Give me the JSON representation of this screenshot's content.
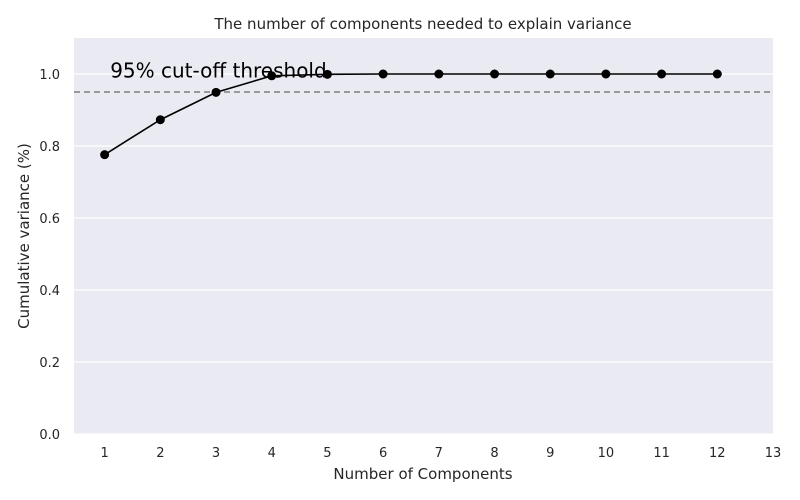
{
  "chart_data": {
    "type": "line",
    "title": "The number of components needed to explain variance",
    "xlabel": "Number of Components",
    "ylabel": "Cumulative variance (%)",
    "x": [
      1,
      2,
      3,
      4,
      5,
      6,
      7,
      8,
      9,
      10,
      11,
      12
    ],
    "xticks": [
      1,
      2,
      3,
      4,
      5,
      6,
      7,
      8,
      9,
      10,
      11,
      12,
      13
    ],
    "yticks": [
      0.0,
      0.2,
      0.4,
      0.6,
      0.8,
      1.0
    ],
    "xlim": [
      0.45,
      13.0
    ],
    "ylim": [
      0.0,
      1.1
    ],
    "series": [
      {
        "values": [
          0.776,
          0.873,
          0.949,
          0.995,
          0.999,
          1.0,
          1.0,
          1.0,
          1.0,
          1.0,
          1.0,
          1.0
        ],
        "color": "#000000",
        "marker": "circle"
      }
    ],
    "threshold": {
      "y": 0.95,
      "color": "#808080",
      "style": "dashed"
    },
    "annotation": {
      "text": "95% cut-off threshold",
      "x": 1.1,
      "y": 0.99
    },
    "grid": true,
    "background": "#eaeaf2",
    "grid_color": "#ffffff"
  }
}
